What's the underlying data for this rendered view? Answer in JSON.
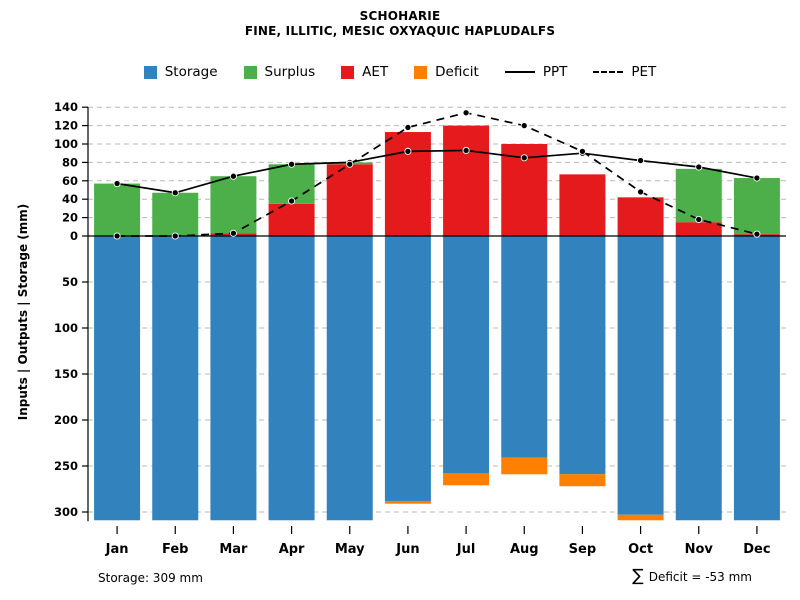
{
  "header": {
    "title": "SCHOHARIE",
    "subtitle": "FINE, ILLITIC, MESIC OXYAQUIC HAPLUDALFS"
  },
  "legend": [
    {
      "label": "Storage",
      "type": "box",
      "color": "#3182bd"
    },
    {
      "label": "Surplus",
      "type": "box",
      "color": "#4daf4a"
    },
    {
      "label": "AET",
      "type": "box",
      "color": "#e41a1c"
    },
    {
      "label": "Deficit",
      "type": "box",
      "color": "#ff7f00"
    },
    {
      "label": "PPT",
      "type": "line",
      "style": "solid",
      "color": "#000000"
    },
    {
      "label": "PET",
      "type": "line",
      "style": "dashed",
      "color": "#000000"
    }
  ],
  "footer": {
    "storage_note": "Storage: 309 mm",
    "sigma": "∑",
    "deficit_text": "Deficit = -53 mm"
  },
  "chart_data": {
    "type": "bar",
    "title": "SCHOHARIE",
    "subtitle": "FINE, ILLITIC, MESIC OXYAQUIC HAPLUDALFS",
    "ylabel": "Inputs | Outputs | Storage  (mm)",
    "categories": [
      "Jan",
      "Feb",
      "Mar",
      "Apr",
      "May",
      "Jun",
      "Jul",
      "Aug",
      "Sep",
      "Oct",
      "Nov",
      "Dec"
    ],
    "series": [
      {
        "name": "AET",
        "type": "bar-up",
        "color": "#e41a1c",
        "values": [
          0,
          0,
          3,
          35,
          78,
          113,
          120,
          100,
          67,
          42,
          15,
          2
        ]
      },
      {
        "name": "Surplus",
        "type": "bar-up",
        "color": "#4daf4a",
        "values": [
          57,
          47,
          62,
          43,
          2,
          0,
          0,
          0,
          0,
          0,
          58,
          61
        ]
      },
      {
        "name": "Storage",
        "type": "bar-down",
        "color": "#3182bd",
        "values": [
          309,
          309,
          309,
          309,
          309,
          288,
          258,
          241,
          259,
          303,
          309,
          309
        ]
      },
      {
        "name": "Deficit",
        "type": "bar-down",
        "color": "#ff7f00",
        "values": [
          0,
          0,
          0,
          0,
          0,
          3,
          13,
          18,
          13,
          6,
          0,
          0
        ]
      },
      {
        "name": "PPT",
        "type": "line",
        "style": "solid",
        "color": "#000000",
        "values": [
          57,
          47,
          65,
          78,
          80,
          92,
          93,
          85,
          90,
          82,
          75,
          63
        ]
      },
      {
        "name": "PET",
        "type": "line",
        "style": "dashed",
        "color": "#000000",
        "values": [
          0,
          0,
          3,
          38,
          78,
          118,
          134,
          120,
          92,
          48,
          18,
          2
        ]
      }
    ],
    "y_ticks_up": [
      0,
      20,
      40,
      60,
      80,
      100,
      120,
      140
    ],
    "y_ticks_down": [
      50,
      100,
      150,
      200,
      250,
      300
    ],
    "ylim_up": [
      0,
      140
    ],
    "ylim_down": [
      0,
      309
    ],
    "grid": true,
    "legend_position": "top"
  }
}
